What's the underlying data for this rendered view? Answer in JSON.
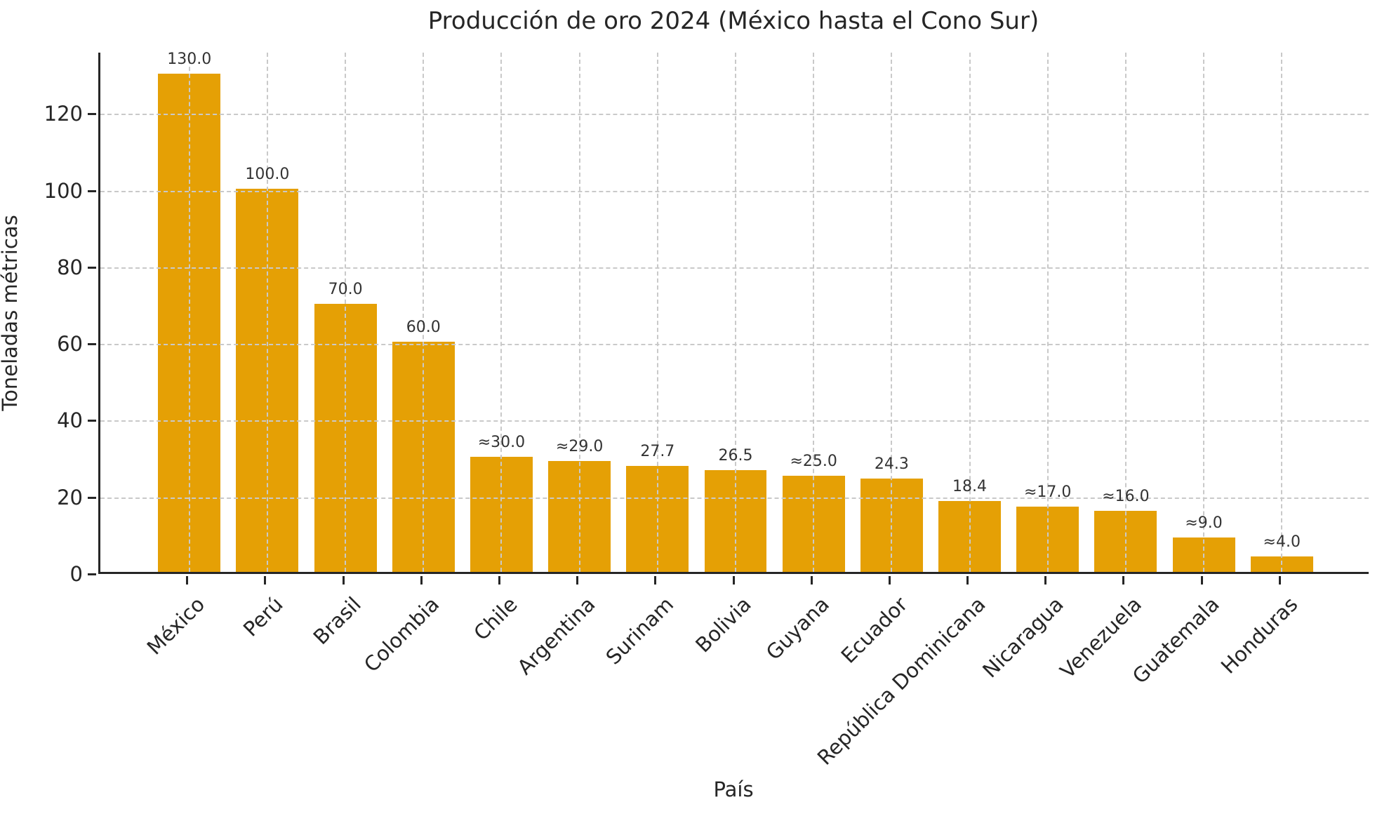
{
  "chart_data": {
    "type": "bar",
    "title": "Producción de oro 2024 (México hasta el Cono Sur)",
    "xlabel": "País",
    "ylabel": "Toneladas métricas",
    "categories": [
      "México",
      "Perú",
      "Brasil",
      "Colombia",
      "Chile",
      "Argentina",
      "Surinam",
      "Bolivia",
      "Guyana",
      "Ecuador",
      "República Dominicana",
      "Nicaragua",
      "Venezuela",
      "Guatemala",
      "Honduras"
    ],
    "values": [
      130.0,
      100.0,
      70.0,
      60.0,
      30.0,
      29.0,
      27.7,
      26.5,
      25.0,
      24.3,
      18.4,
      17.0,
      16.0,
      9.0,
      4.0
    ],
    "value_labels": [
      "130.0",
      "100.0",
      "70.0",
      "60.0",
      "≈30.0",
      "≈29.0",
      "27.7",
      "26.5",
      "≈25.0",
      "24.3",
      "18.4",
      "≈17.0",
      "≈16.0",
      "≈9.0",
      "≈4.0"
    ],
    "yticks": [
      0,
      20,
      40,
      60,
      80,
      100,
      120
    ],
    "ylim": [
      0,
      136
    ],
    "grid": "dashed-both-axes",
    "legend": "none",
    "bar_color": "#E5A005"
  }
}
